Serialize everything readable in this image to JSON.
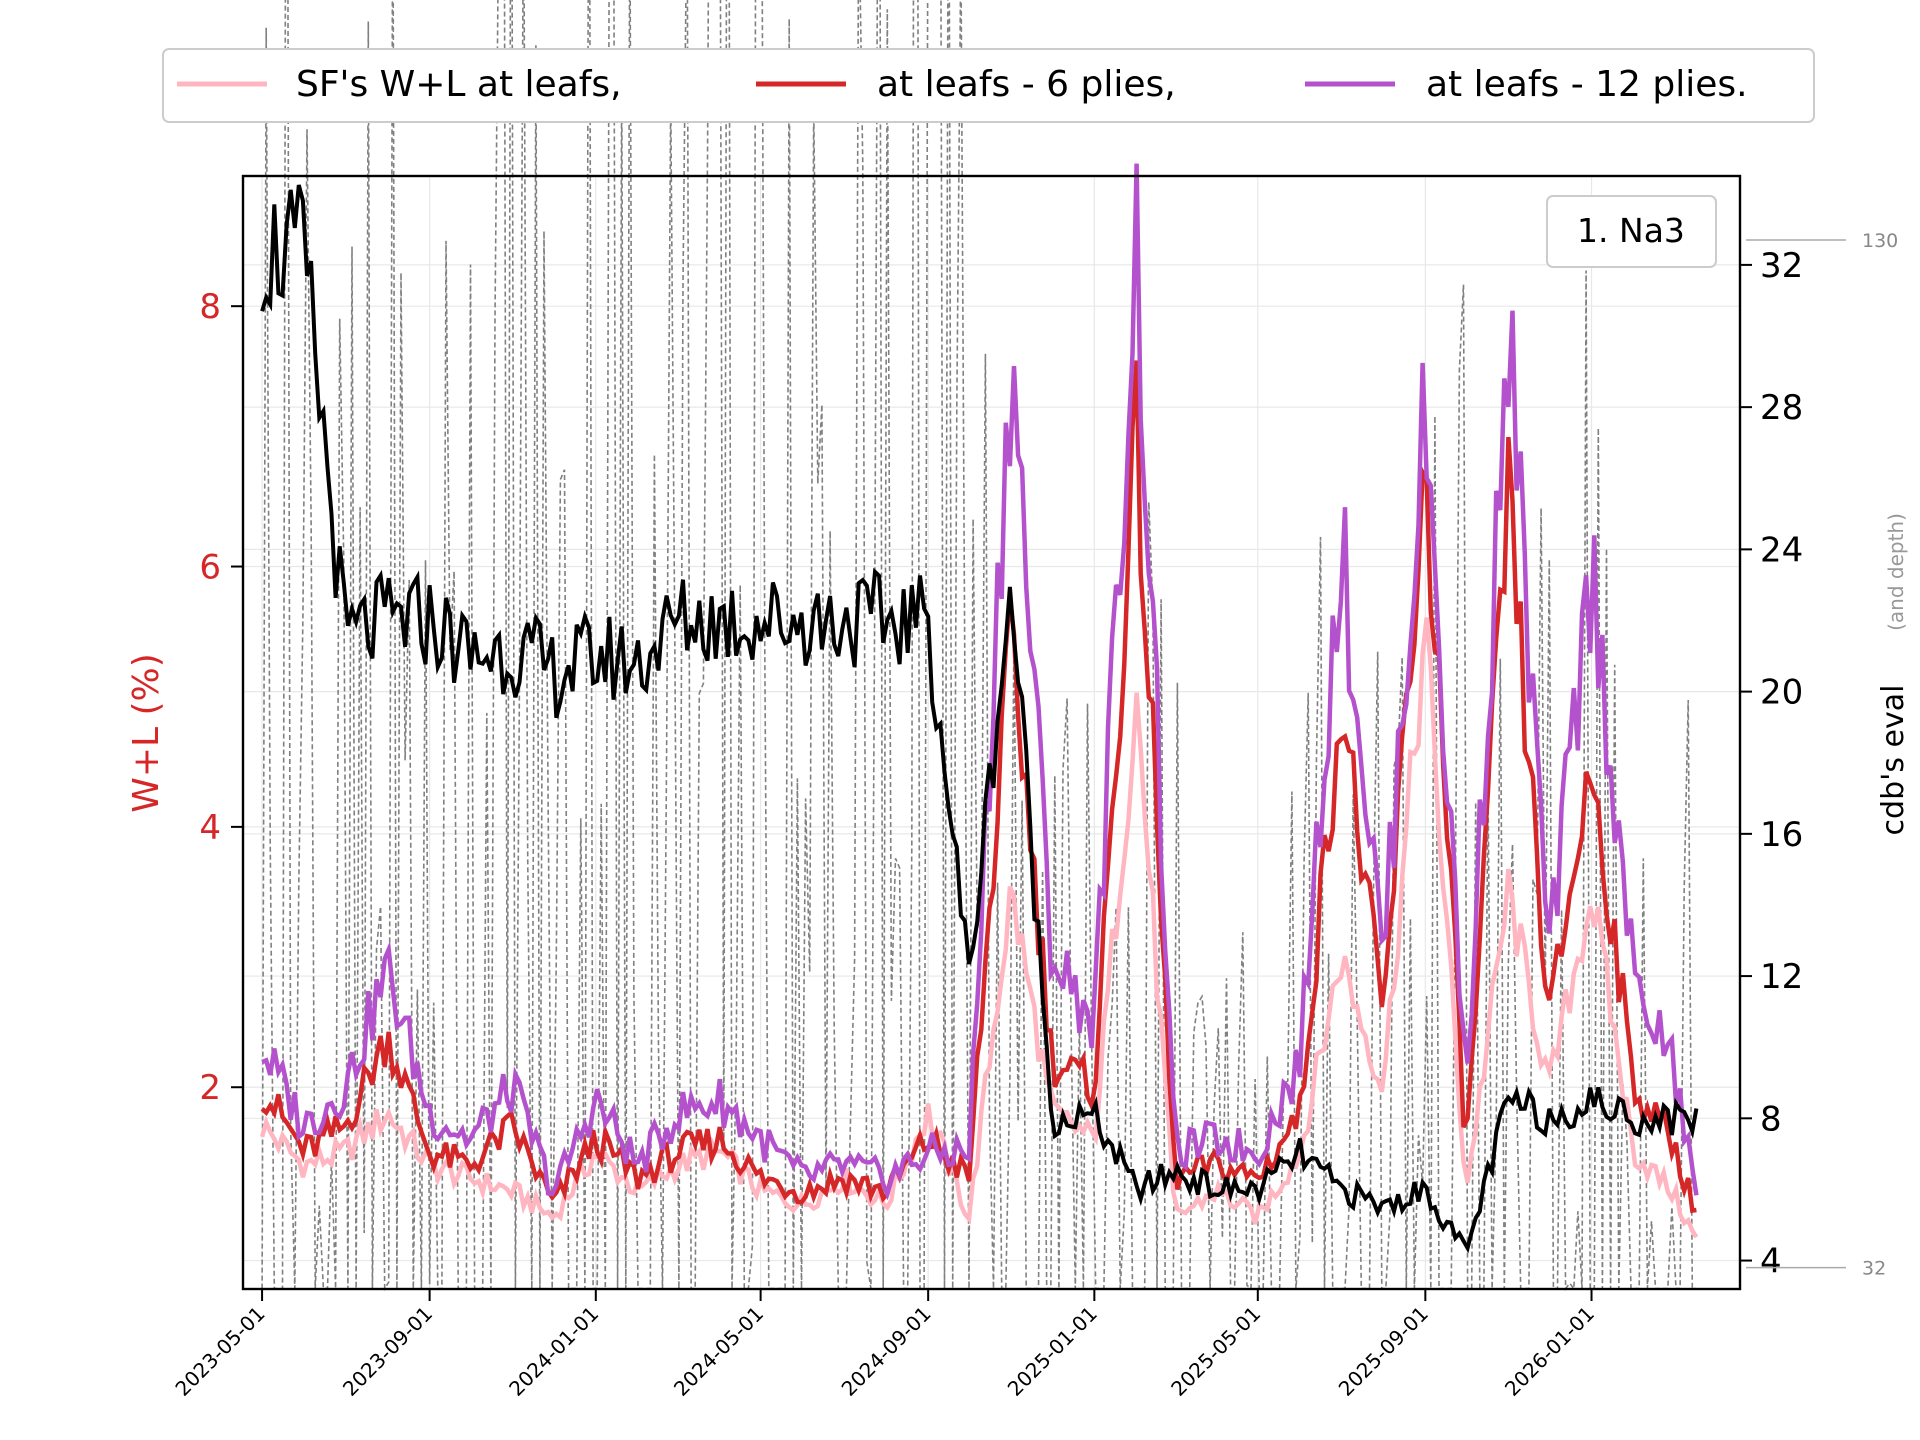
{
  "chart_data": {
    "type": "line",
    "legend": {
      "placement": "top-center",
      "entries": [
        {
          "label": "SF's W+L at leafs,",
          "color": "#ffb6c1"
        },
        {
          "label": "at leafs - 6 plies,",
          "color": "#d62728"
        },
        {
          "label": "at leafs - 12 plies.",
          "color": "#b452cd"
        }
      ]
    },
    "annotation": "1. Na3",
    "left_axis": {
      "label": "W+L (%)",
      "color": "#d62728",
      "range": [
        0.45,
        9.0
      ],
      "ticks": [
        2,
        4,
        6,
        8
      ]
    },
    "right_axis": {
      "label": "cdb's eval",
      "sublabel": "(and depth)",
      "range": [
        3.2,
        34.5
      ],
      "ticks": [
        4,
        8,
        12,
        16,
        20,
        24,
        28,
        32
      ]
    },
    "depth_axis": {
      "ticks": [
        {
          "value": 130,
          "at_eval": 32.7
        },
        {
          "value": 32,
          "at_eval": 3.8
        }
      ]
    },
    "x_axis": {
      "range": [
        "2023-04-17",
        "2026-04-20"
      ],
      "ticks": [
        "2023-05-01",
        "2023-09-01",
        "2024-01-01",
        "2024-05-01",
        "2024-09-01",
        "2025-01-01",
        "2025-05-01",
        "2025-09-01",
        "2026-01-01"
      ]
    },
    "grid": true,
    "anchors": {
      "x": [
        "2023-05-01",
        "2023-06-01",
        "2023-07-01",
        "2023-08-01",
        "2023-09-01",
        "2023-10-01",
        "2023-11-01",
        "2023-12-01",
        "2024-01-01",
        "2024-02-01",
        "2024-03-01",
        "2024-04-01",
        "2024-05-01",
        "2024-06-01",
        "2024-07-01",
        "2024-08-01",
        "2024-09-01",
        "2024-10-01",
        "2024-11-01",
        "2024-12-01",
        "2025-01-01",
        "2025-02-01",
        "2025-03-01",
        "2025-04-01",
        "2025-05-01",
        "2025-06-01",
        "2025-07-01",
        "2025-08-01",
        "2025-09-01",
        "2025-10-01",
        "2025-11-01",
        "2025-12-01",
        "2026-01-01",
        "2026-02-01",
        "2026-03-01",
        "2026-03-20"
      ],
      "sf_wl": [
        1.7,
        1.4,
        1.5,
        1.8,
        1.4,
        1.3,
        1.2,
        1.0,
        1.5,
        1.2,
        1.4,
        1.5,
        1.2,
        1.1,
        1.3,
        1.1,
        1.8,
        1.0,
        3.5,
        1.8,
        1.6,
        5.0,
        1.0,
        1.2,
        1.0,
        1.5,
        3.0,
        2.0,
        5.5,
        1.2,
        3.5,
        2.0,
        3.5,
        1.5,
        1.2,
        0.8
      ],
      "leafs6": [
        2.0,
        1.5,
        1.7,
        2.4,
        1.5,
        1.4,
        1.7,
        1.1,
        1.6,
        1.3,
        1.5,
        1.6,
        1.3,
        1.2,
        1.3,
        1.2,
        1.6,
        1.3,
        5.5,
        2.2,
        2.0,
        7.0,
        1.3,
        1.4,
        1.3,
        1.8,
        5.0,
        2.5,
        6.8,
        1.5,
        6.5,
        2.5,
        4.5,
        2.0,
        1.6,
        1.0
      ],
      "leafs12": [
        2.3,
        1.7,
        2.0,
        2.9,
        1.8,
        1.6,
        2.0,
        1.2,
        1.9,
        1.4,
        1.8,
        1.9,
        1.6,
        1.3,
        1.4,
        1.3,
        1.5,
        1.5,
        7.7,
        3.0,
        2.5,
        8.5,
        1.5,
        1.6,
        1.5,
        2.2,
        6.2,
        3.0,
        7.2,
        2.0,
        7.8,
        3.0,
        6.0,
        2.8,
        2.2,
        1.1
      ],
      "cdb_eval": [
        32.5,
        32.3,
        21.5,
        22.0,
        22.0,
        21.0,
        21.2,
        20.5,
        21.0,
        20.8,
        22.0,
        22.0,
        22.0,
        22.0,
        22.0,
        22.0,
        22.0,
        12.0,
        23.0,
        8.0,
        8.0,
        6.0,
        6.5,
        6.0,
        6.0,
        7.0,
        6.0,
        5.5,
        6.0,
        4.2,
        8.5,
        8.0,
        8.5,
        8.0,
        8.0,
        8.0
      ],
      "depth": [
        60,
        70,
        40,
        55,
        40,
        60,
        70,
        45,
        75,
        55,
        60,
        80,
        65,
        50,
        60,
        70,
        95,
        45,
        30,
        25,
        30,
        40,
        30,
        20,
        30,
        32,
        35,
        40,
        35,
        40,
        30,
        35,
        40,
        35,
        30,
        32
      ]
    }
  }
}
